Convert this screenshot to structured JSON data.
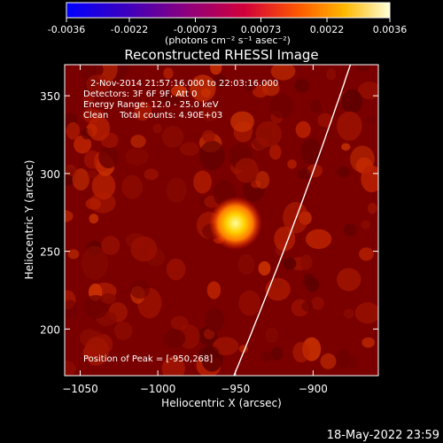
{
  "chart_data": {
    "type": "heatmap",
    "title": "Reconstructed RHESSI Image",
    "xlabel": "Heliocentric X (arcsec)",
    "ylabel": "Heliocentric Y (arcsec)",
    "xlim": [
      -1060,
      -858
    ],
    "ylim": [
      170,
      370
    ],
    "x_ticks": [
      -1050,
      -1000,
      -950,
      -900
    ],
    "y_ticks": [
      200,
      250,
      300,
      350
    ],
    "colorbar": {
      "min": -0.0036,
      "max": 0.0036,
      "ticks": [
        -0.0036,
        -0.0022,
        -0.00073,
        0.00073,
        0.0022,
        0.0036
      ],
      "tick_labels": [
        "-0.0036",
        "-0.0022",
        "-0.00073",
        "0.00073",
        "0.0022",
        "0.0036"
      ],
      "unit_label": "(photons cm⁻² s⁻¹ asec⁻²)"
    },
    "annotations": [
      "2-Nov-2014 21:57:16.000 to 22:03:16.000",
      "Detectors: 3F 6F 9F, Att 0",
      "Energy Range: 12.0 - 25.0 keV",
      "Clean    Total counts: 4.90E+03",
      "Position of Peak = [-950,268]"
    ],
    "peak": {
      "x": -950,
      "y": 268
    },
    "limb_color": "#ffffff"
  },
  "footer_timestamp": "18-May-2022 23:59"
}
